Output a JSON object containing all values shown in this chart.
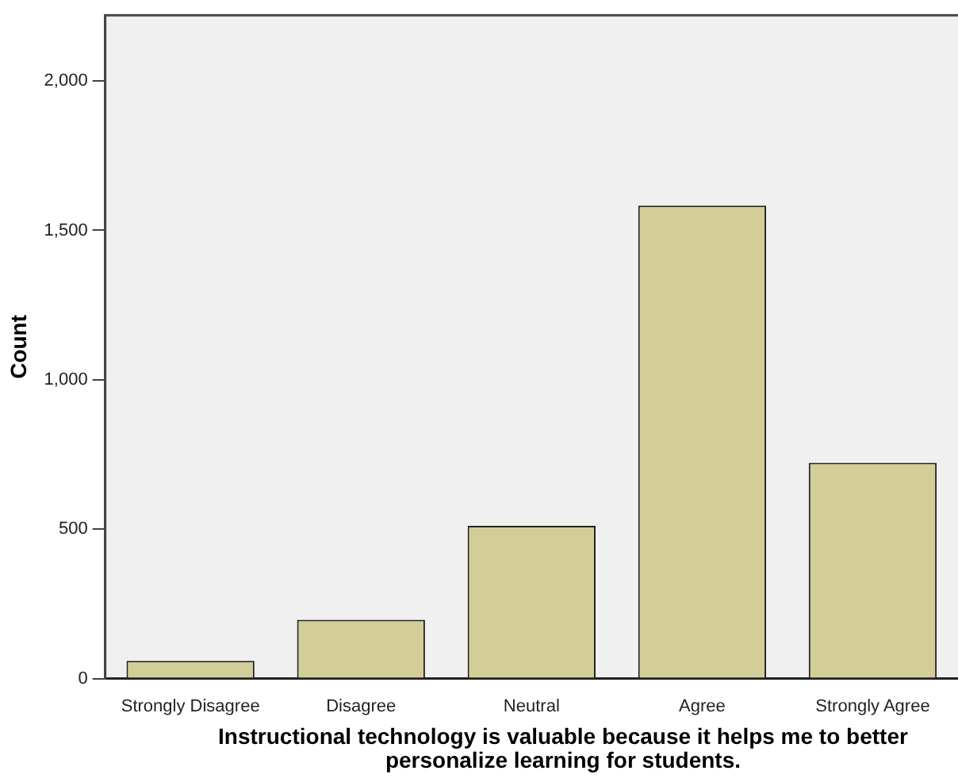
{
  "chart_data": {
    "type": "bar",
    "categories": [
      "Strongly Disagree",
      "Disagree",
      "Neutral",
      "Agree",
      "Strongly Agree"
    ],
    "values": [
      59,
      197,
      511,
      1583,
      722
    ],
    "color": "#d3ce97",
    "xlabel": "Instructional technology is valuable because it helps me to better personalize learning for students.",
    "ylabel": "Count",
    "ylim": [
      0,
      2220
    ],
    "yticks": [
      {
        "value": 0,
        "label": "0"
      },
      {
        "value": 500,
        "label": "500"
      },
      {
        "value": 1000,
        "label": "1,000"
      },
      {
        "value": 1500,
        "label": "1,500"
      },
      {
        "value": 2000,
        "label": "2,000"
      }
    ],
    "grid": false,
    "legend": false
  }
}
